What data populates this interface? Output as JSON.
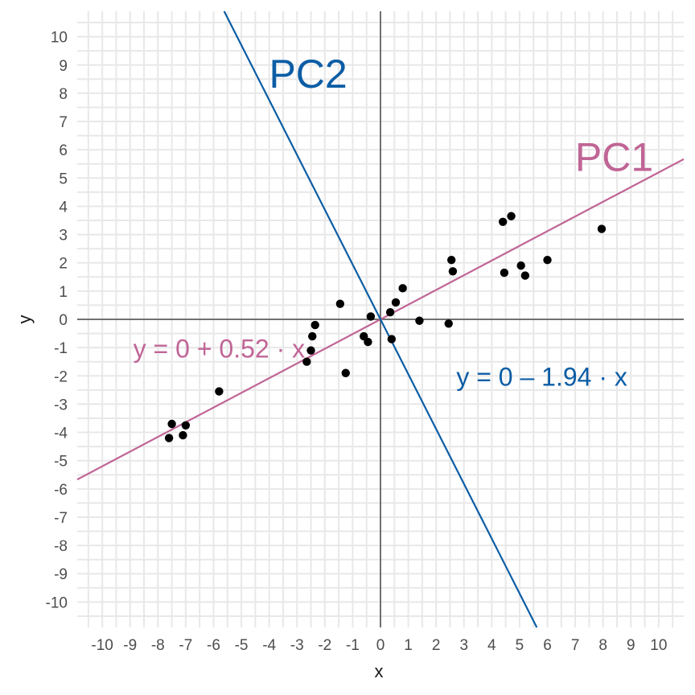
{
  "chart_data": {
    "type": "scatter",
    "xlabel": "x",
    "ylabel": "y",
    "xlim": [
      -10.9,
      10.9
    ],
    "ylim": [
      -10.9,
      10.9
    ],
    "x_ticks": [
      -10,
      -9,
      -8,
      -7,
      -6,
      -5,
      -4,
      -3,
      -2,
      -1,
      0,
      1,
      2,
      3,
      4,
      5,
      6,
      7,
      8,
      9,
      10
    ],
    "y_ticks": [
      -10,
      -9,
      -8,
      -7,
      -6,
      -5,
      -4,
      -3,
      -2,
      -1,
      0,
      1,
      2,
      3,
      4,
      5,
      6,
      7,
      8,
      9,
      10
    ],
    "grid": true,
    "zero_lines": true,
    "points": [
      {
        "x": -7.6,
        "y": -4.2
      },
      {
        "x": -7.5,
        "y": -3.7
      },
      {
        "x": -7.1,
        "y": -4.1
      },
      {
        "x": -7.0,
        "y": -3.75
      },
      {
        "x": -5.8,
        "y": -2.55
      },
      {
        "x": -2.65,
        "y": -1.5
      },
      {
        "x": -2.5,
        "y": -1.1
      },
      {
        "x": -2.45,
        "y": -0.6
      },
      {
        "x": -2.35,
        "y": -0.2
      },
      {
        "x": -1.45,
        "y": 0.55
      },
      {
        "x": -1.25,
        "y": -1.9
      },
      {
        "x": -0.6,
        "y": -0.6
      },
      {
        "x": -0.45,
        "y": -0.8
      },
      {
        "x": -0.35,
        "y": 0.1
      },
      {
        "x": 0.35,
        "y": 0.25
      },
      {
        "x": 0.4,
        "y": -0.7
      },
      {
        "x": 0.55,
        "y": 0.6
      },
      {
        "x": 0.8,
        "y": 1.1
      },
      {
        "x": 1.4,
        "y": -0.05
      },
      {
        "x": 2.45,
        "y": -0.15
      },
      {
        "x": 2.55,
        "y": 2.1
      },
      {
        "x": 2.6,
        "y": 1.7
      },
      {
        "x": 4.4,
        "y": 3.45
      },
      {
        "x": 4.45,
        "y": 1.65
      },
      {
        "x": 4.7,
        "y": 3.65
      },
      {
        "x": 5.05,
        "y": 1.9
      },
      {
        "x": 5.2,
        "y": 1.55
      },
      {
        "x": 6.0,
        "y": 2.1
      },
      {
        "x": 7.95,
        "y": 3.2
      }
    ],
    "lines": [
      {
        "name": "PC1",
        "intercept": 0,
        "slope": 0.52,
        "color": "#c06596",
        "equation": "y = 0 + 0.52 · x"
      },
      {
        "name": "PC2",
        "intercept": 0,
        "slope": -1.94,
        "color": "#0c5da5",
        "equation": "y = 0 – 1.94 · x"
      }
    ],
    "point_color": "#000000"
  }
}
